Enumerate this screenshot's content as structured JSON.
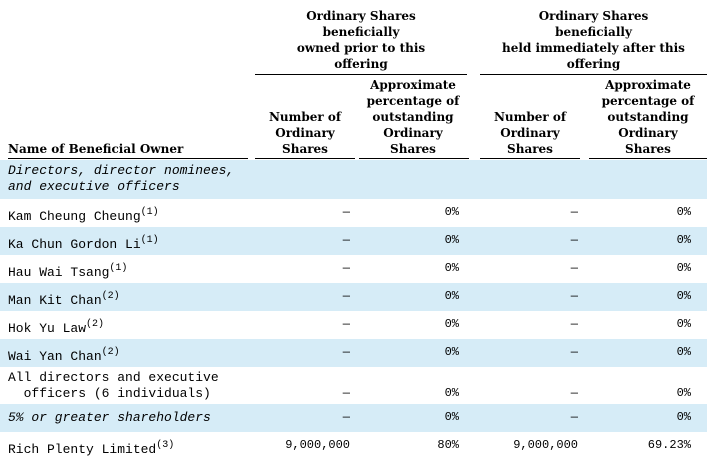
{
  "header": {
    "group_prior": [
      "Ordinary Shares",
      "beneficially",
      "owned prior to this",
      "offering"
    ],
    "group_after": [
      "Ordinary Shares",
      "beneficially",
      "held immediately after this",
      "offering"
    ],
    "col_name": "Name of Beneficial Owner",
    "col_number_prior": [
      "Number of",
      "Ordinary",
      "Shares"
    ],
    "col_pct_prior": [
      "Approximate",
      "percentage of",
      "outstanding",
      "Ordinary",
      "Shares"
    ],
    "col_number_after": [
      "Number of",
      "Ordinary",
      "Shares"
    ],
    "col_pct_after": [
      "Approximate",
      "percentage of",
      "outstanding",
      "Ordinary",
      "Shares"
    ]
  },
  "rows": [
    {
      "name": [
        "Directors, director nominees,",
        "and executive officers"
      ],
      "italic": true,
      "shade": true,
      "sup": "",
      "num_prior": "",
      "pct_prior": "",
      "num_after": "",
      "pct_after": ""
    },
    {
      "name": [
        "Kam Cheung Cheung"
      ],
      "sup": "(1)",
      "shade": false,
      "num_prior": "—",
      "pct_prior": "0%",
      "num_after": "—",
      "pct_after": "0%"
    },
    {
      "name": [
        "Ka Chun Gordon Li"
      ],
      "sup": "(1)",
      "shade": true,
      "num_prior": "—",
      "pct_prior": "0%",
      "num_after": "—",
      "pct_after": "0%"
    },
    {
      "name": [
        "Hau Wai Tsang"
      ],
      "sup": "(1)",
      "shade": false,
      "num_prior": "—",
      "pct_prior": "0%",
      "num_after": "—",
      "pct_after": "0%"
    },
    {
      "name": [
        "Man Kit Chan"
      ],
      "sup": "(2)",
      "shade": true,
      "num_prior": "—",
      "pct_prior": "0%",
      "num_after": "—",
      "pct_after": "0%"
    },
    {
      "name": [
        "Hok Yu Law"
      ],
      "sup": "(2)",
      "shade": false,
      "num_prior": "—",
      "pct_prior": "0%",
      "num_after": "—",
      "pct_after": "0%"
    },
    {
      "name": [
        "Wai Yan Chan"
      ],
      "sup": "(2)",
      "shade": true,
      "num_prior": "—",
      "pct_prior": "0%",
      "num_after": "—",
      "pct_after": "0%"
    },
    {
      "name": [
        "All directors and executive",
        "  officers (6 individuals)"
      ],
      "sup": "",
      "shade": false,
      "num_prior": "—",
      "pct_prior": "0%",
      "num_after": "—",
      "pct_after": "0%"
    },
    {
      "name": [
        "5% or greater shareholders"
      ],
      "italic": true,
      "sup": "",
      "shade": true,
      "num_prior": "—",
      "pct_prior": "0%",
      "num_after": "—",
      "pct_after": "0%"
    },
    {
      "name": [
        "Rich Plenty Limited"
      ],
      "sup": "(3)",
      "shade": false,
      "num_prior": "9,000,000",
      "pct_prior": "80%",
      "num_after": "9,000,000",
      "pct_after": "69.23%"
    }
  ]
}
